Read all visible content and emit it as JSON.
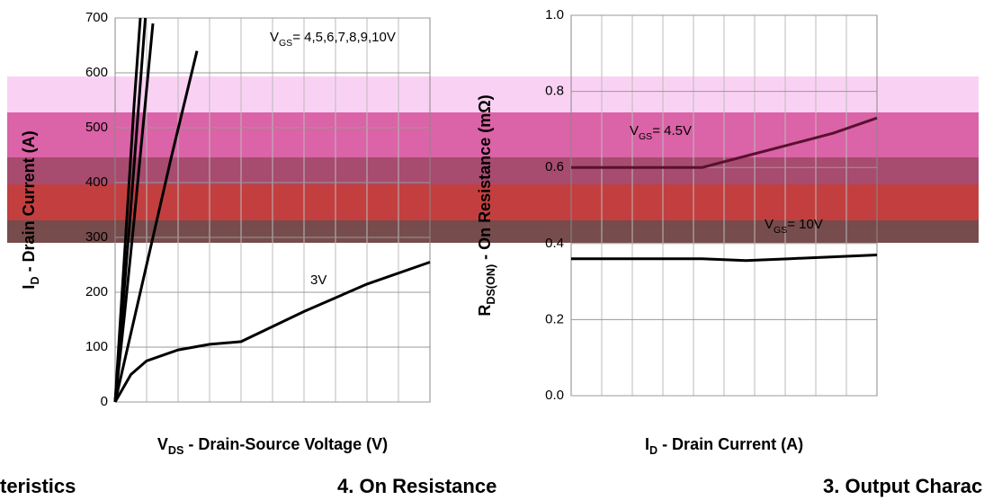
{
  "chart_data": [
    {
      "type": "line",
      "ylabel": {
        "main": "I",
        "sub": "D",
        "rest": " - Drain Current (A)"
      },
      "xlabel": {
        "main": "V",
        "sub": "DS",
        "rest": " - Drain-Source Voltage (V)"
      },
      "xlim": [
        0,
        5
      ],
      "ylim": [
        0,
        700
      ],
      "yticks": [
        0,
        100,
        200,
        300,
        400,
        500,
        600,
        700
      ],
      "grid": true,
      "annotations": [
        {
          "main": "V",
          "sub": "GS",
          "rest": "= 4,5,6,7,8,9,10V"
        },
        {
          "main": "3V"
        }
      ],
      "series": [
        {
          "color": "#000000",
          "x": [
            0,
            0.1,
            0.2,
            0.3,
            0.4
          ],
          "values": [
            0,
            180,
            360,
            540,
            700
          ]
        },
        {
          "color": "#000000",
          "x": [
            0,
            0.12,
            0.24,
            0.36,
            0.48
          ],
          "values": [
            0,
            170,
            340,
            520,
            700
          ]
        },
        {
          "color": "#000000",
          "x": [
            0,
            0.15,
            0.3,
            0.45,
            0.6
          ],
          "values": [
            0,
            160,
            330,
            510,
            690
          ]
        },
        {
          "color": "#000000",
          "x": [
            0,
            0.3,
            0.6,
            0.9,
            1.3
          ],
          "values": [
            0,
            150,
            300,
            450,
            640
          ]
        },
        {
          "color": "#000000",
          "x": [
            0,
            0.25,
            0.5,
            1,
            1.5,
            2,
            3,
            4,
            5
          ],
          "values": [
            0,
            50,
            75,
            95,
            105,
            110,
            165,
            215,
            255
          ]
        }
      ]
    },
    {
      "type": "line",
      "ylabel": {
        "main": "R",
        "sub": "DS(ON)",
        "rest": " - On Resistance (mΩ)"
      },
      "xlabel": {
        "main": "I",
        "sub": "D",
        "rest": " - Drain Current (A)"
      },
      "xlim": [
        0,
        700
      ],
      "ylim": [
        0,
        1
      ],
      "yticks": [
        {
          "value": 0,
          "label": "0.0"
        },
        0.2,
        0.4,
        0.6,
        0.8,
        {
          "value": 1,
          "label": "1.0"
        }
      ],
      "grid": true,
      "annotations": [
        {
          "main": "V",
          "sub": "GS",
          "rest": "= 4.5V"
        },
        {
          "main": "V",
          "sub": "GS",
          "rest": "= 10V"
        }
      ],
      "series": [
        {
          "color": "#5a1030",
          "x": [
            0,
            100,
            200,
            300,
            400,
            500,
            600,
            700
          ],
          "values": [
            0.6,
            0.6,
            0.6,
            0.6,
            0.63,
            0.66,
            0.69,
            0.73
          ]
        },
        {
          "color": "#000000",
          "x": [
            0,
            100,
            200,
            300,
            400,
            500,
            600,
            700
          ],
          "values": [
            0.36,
            0.36,
            0.36,
            0.36,
            0.355,
            0.36,
            0.365,
            0.37
          ]
        }
      ]
    }
  ],
  "captions": [
    "teristics",
    "4. On Resistance",
    "3. Output Charac"
  ]
}
